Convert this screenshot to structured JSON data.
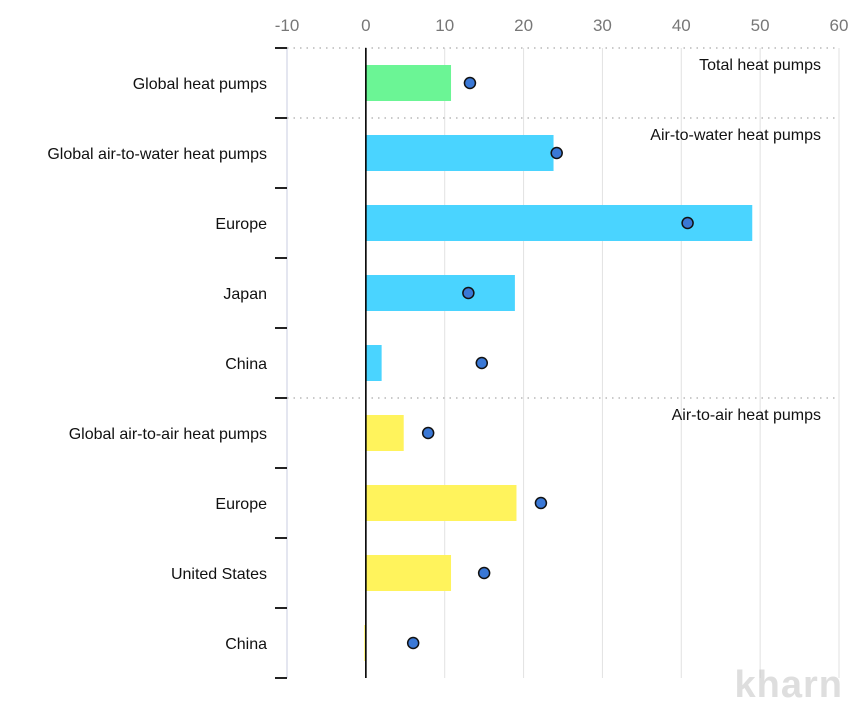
{
  "chart_data": {
    "type": "bar",
    "xlim": [
      -10,
      60
    ],
    "xticks": [
      -10,
      0,
      10,
      20,
      30,
      40,
      50,
      60
    ],
    "grid": true,
    "groups": [
      {
        "label": "Total heat pumps",
        "color": "#6bf595",
        "start": 0,
        "count": 1
      },
      {
        "label": "Air-to-water heat pumps",
        "color": "#4ad4ff",
        "start": 1,
        "count": 4
      },
      {
        "label": "Air-to-air heat pumps",
        "color": "#fff35c",
        "start": 5,
        "count": 4
      }
    ],
    "categories": [
      "Global heat pumps",
      "Global air-to-water heat pumps",
      "Europe",
      "Japan",
      "China",
      "Global air-to-air heat pumps",
      "Europe",
      "United States",
      "China"
    ],
    "series": [
      {
        "name": "bar",
        "values": [
          10.8,
          23.8,
          49.0,
          18.9,
          2.0,
          4.8,
          19.1,
          10.8,
          -0.2
        ]
      },
      {
        "name": "dot",
        "color": "#3a78d6",
        "values": [
          13.2,
          24.2,
          40.8,
          13.0,
          14.7,
          7.9,
          22.2,
          15.0,
          6.0
        ]
      }
    ]
  },
  "watermark": "kharn"
}
